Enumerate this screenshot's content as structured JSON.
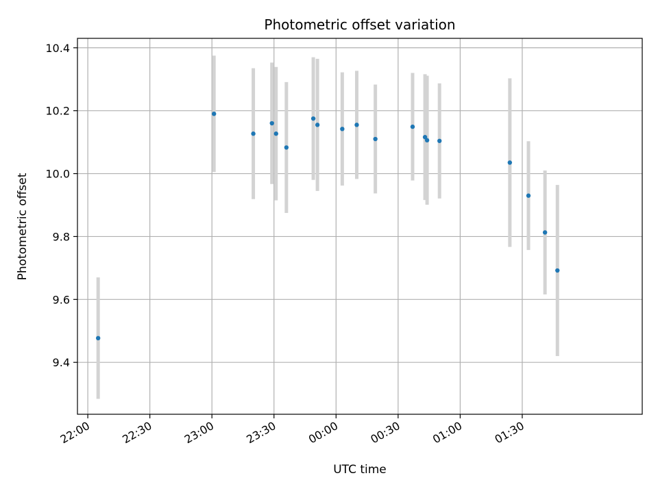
{
  "chart_data": {
    "type": "scatter",
    "title": "Photometric offset variation",
    "xlabel": "UTC time",
    "ylabel": "Photometric offset",
    "x_tick_labels": [
      "22:00",
      "22:30",
      "23:00",
      "23:30",
      "00:00",
      "00:30",
      "01:00",
      "01:30"
    ],
    "x_ticks_minutes": [
      0,
      30,
      60,
      90,
      120,
      150,
      180,
      210
    ],
    "y_tick_labels": [
      "9.4",
      "9.6",
      "9.8",
      "10.0",
      "10.2",
      "10.4"
    ],
    "y_ticks": [
      9.4,
      9.6,
      9.8,
      10.0,
      10.2,
      10.4
    ],
    "xlim_time": [
      "21:55",
      "02:28"
    ],
    "ylim": [
      9.235,
      10.43
    ],
    "grid": true,
    "point_color": "#1f77b4",
    "errorbar_color": "#d3d3d3",
    "points": [
      {
        "time": "22:05",
        "y": 9.477,
        "yerr": 0.193
      },
      {
        "time": "23:01",
        "y": 10.19,
        "yerr": 0.185
      },
      {
        "time": "23:20",
        "y": 10.127,
        "yerr": 0.208
      },
      {
        "time": "23:29",
        "y": 10.16,
        "yerr": 0.193
      },
      {
        "time": "23:31",
        "y": 10.127,
        "yerr": 0.212
      },
      {
        "time": "23:36",
        "y": 10.083,
        "yerr": 0.208
      },
      {
        "time": "23:49",
        "y": 10.175,
        "yerr": 0.195
      },
      {
        "time": "23:51",
        "y": 10.155,
        "yerr": 0.21
      },
      {
        "time": "00:03",
        "y": 10.142,
        "yerr": 0.18
      },
      {
        "time": "00:10",
        "y": 10.155,
        "yerr": 0.172
      },
      {
        "time": "00:19",
        "y": 10.11,
        "yerr": 0.173
      },
      {
        "time": "00:37",
        "y": 10.149,
        "yerr": 0.171
      },
      {
        "time": "00:43",
        "y": 10.116,
        "yerr": 0.2
      },
      {
        "time": "00:44",
        "y": 10.106,
        "yerr": 0.205
      },
      {
        "time": "00:50",
        "y": 10.104,
        "yerr": 0.183
      },
      {
        "time": "01:24",
        "y": 10.035,
        "yerr": 0.268
      },
      {
        "time": "01:33",
        "y": 9.93,
        "yerr": 0.173
      },
      {
        "time": "01:41",
        "y": 9.813,
        "yerr": 0.197
      },
      {
        "time": "01:47",
        "y": 9.692,
        "yerr": 0.272
      }
    ]
  }
}
